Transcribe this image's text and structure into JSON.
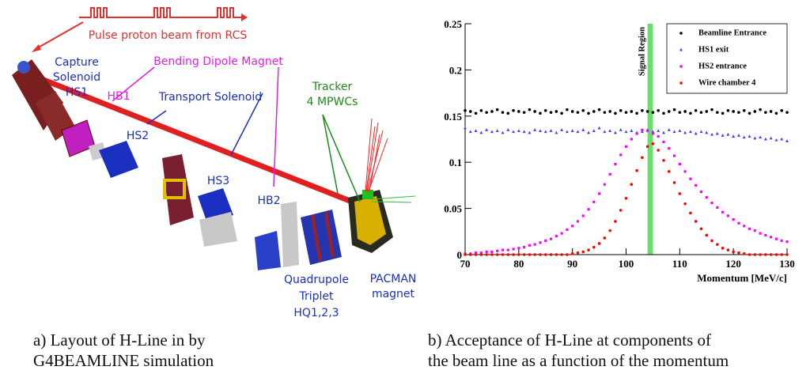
{
  "left_panel": {
    "labels": {
      "beam": "Pulse proton beam from RCS",
      "capture": [
        "Capture",
        "Solenoid",
        "HS1"
      ],
      "bending": "Bending Dipole Magnet",
      "hb1": "HB1",
      "transport": "Transport Solenoid",
      "hs2": "HS2",
      "hs3": "HS3",
      "hb2": "HB2",
      "tracker": [
        "Tracker",
        "4 MPWCs"
      ],
      "quad": [
        "Quadrupole",
        "Triplet",
        "HQ1,2,3"
      ],
      "pacman": [
        "PACMAN",
        "magnet"
      ]
    },
    "caption": [
      "a) Layout of H-Line in by",
      "G4BEAMLINE simulation"
    ]
  },
  "chart_data": {
    "type": "scatter",
    "caption": [
      "b) Acceptance of H-Line at components of",
      "the beam line as a function of the momentum"
    ],
    "x_label": "Momentum [MeV/c]",
    "xlim": [
      70,
      130
    ],
    "xticks": [
      70,
      80,
      90,
      100,
      110,
      120,
      130
    ],
    "ylim": [
      0,
      0.25
    ],
    "yticks": [
      0,
      0.05,
      0.1,
      0.15,
      0.2,
      0.25
    ],
    "grid": false,
    "legend": "upper right",
    "band": {
      "label": "Signal Region",
      "range": [
        104,
        105
      ],
      "color": "#66e066"
    },
    "x": [
      70,
      71,
      72,
      73,
      74,
      75,
      76,
      77,
      78,
      79,
      80,
      81,
      82,
      83,
      84,
      85,
      86,
      87,
      88,
      89,
      90,
      91,
      92,
      93,
      94,
      95,
      96,
      97,
      98,
      99,
      100,
      101,
      102,
      103,
      104,
      105,
      106,
      107,
      108,
      109,
      110,
      111,
      112,
      113,
      114,
      115,
      116,
      117,
      118,
      119,
      120,
      121,
      122,
      123,
      124,
      125,
      126,
      127,
      128,
      129,
      130
    ],
    "series": [
      {
        "name": "Beamline Entrance",
        "color": "#000000",
        "marker": "circle",
        "values": [
          0.156,
          0.155,
          0.153,
          0.156,
          0.154,
          0.155,
          0.157,
          0.154,
          0.153,
          0.156,
          0.155,
          0.154,
          0.157,
          0.155,
          0.153,
          0.156,
          0.154,
          0.155,
          0.153,
          0.157,
          0.155,
          0.154,
          0.156,
          0.153,
          0.155,
          0.157,
          0.154,
          0.155,
          0.153,
          0.156,
          0.154,
          0.155,
          0.153,
          0.156,
          0.155,
          0.154,
          0.156,
          0.153,
          0.155,
          0.157,
          0.154,
          0.155,
          0.153,
          0.156,
          0.154,
          0.155,
          0.157,
          0.154,
          0.153,
          0.156,
          0.155,
          0.154,
          0.156,
          0.153,
          0.155,
          0.157,
          0.154,
          0.155,
          0.153,
          0.156,
          0.154
        ]
      },
      {
        "name": "HS1 exit",
        "color": "#4040ff",
        "marker": "triangle",
        "values": [
          0.137,
          0.133,
          0.134,
          0.132,
          0.135,
          0.133,
          0.134,
          0.132,
          0.135,
          0.133,
          0.134,
          0.133,
          0.132,
          0.135,
          0.134,
          0.133,
          0.134,
          0.132,
          0.135,
          0.133,
          0.134,
          0.133,
          0.135,
          0.132,
          0.134,
          0.137,
          0.133,
          0.134,
          0.132,
          0.135,
          0.133,
          0.134,
          0.132,
          0.133,
          0.135,
          0.133,
          0.134,
          0.132,
          0.135,
          0.133,
          0.134,
          0.132,
          0.133,
          0.131,
          0.133,
          0.132,
          0.13,
          0.131,
          0.129,
          0.13,
          0.128,
          0.129,
          0.127,
          0.128,
          0.126,
          0.127,
          0.125,
          0.126,
          0.124,
          0.125,
          0.123
        ]
      },
      {
        "name": "HS2 entrance",
        "color": "#ff00ff",
        "marker": "square",
        "values": [
          0.001,
          0.001,
          0.002,
          0.002,
          0.003,
          0.003,
          0.004,
          0.005,
          0.005,
          0.006,
          0.007,
          0.008,
          0.01,
          0.011,
          0.013,
          0.015,
          0.017,
          0.02,
          0.023,
          0.027,
          0.031,
          0.036,
          0.042,
          0.049,
          0.057,
          0.066,
          0.076,
          0.087,
          0.098,
          0.108,
          0.117,
          0.125,
          0.131,
          0.135,
          0.134,
          0.131,
          0.128,
          0.122,
          0.115,
          0.107,
          0.098,
          0.09,
          0.082,
          0.075,
          0.068,
          0.062,
          0.056,
          0.051,
          0.046,
          0.042,
          0.038,
          0.034,
          0.031,
          0.028,
          0.026,
          0.023,
          0.021,
          0.019,
          0.017,
          0.015,
          0.014
        ]
      },
      {
        "name": "Wire chamber 4",
        "color": "#ff0000",
        "marker": "circle",
        "values": [
          0,
          0,
          0,
          0,
          0,
          0,
          0,
          0,
          0,
          0,
          0,
          0,
          0,
          0,
          0,
          0,
          0,
          0,
          0,
          0,
          0.001,
          0.002,
          0.003,
          0.005,
          0.008,
          0.012,
          0.018,
          0.026,
          0.036,
          0.048,
          0.061,
          0.076,
          0.091,
          0.105,
          0.117,
          0.12,
          0.113,
          0.102,
          0.09,
          0.078,
          0.066,
          0.055,
          0.045,
          0.036,
          0.028,
          0.021,
          0.015,
          0.011,
          0.007,
          0.005,
          0.003,
          0.002,
          0.001,
          0,
          0,
          0,
          0,
          0,
          0,
          0,
          0
        ]
      }
    ]
  }
}
